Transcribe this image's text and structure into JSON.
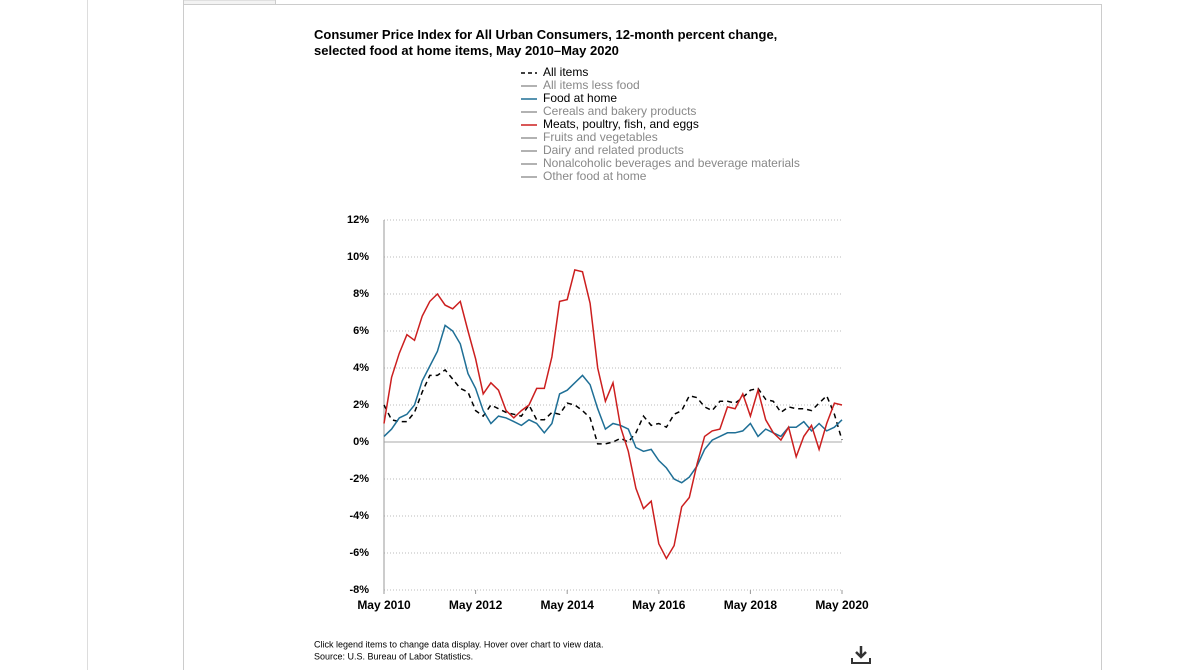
{
  "chart_data": {
    "type": "line",
    "title": "Consumer Price Index for All Urban Consumers, 12-month percent change, selected food at home items, May 2010–May 2020",
    "x": [
      "2010-05",
      "2010-07",
      "2010-09",
      "2010-11",
      "2011-01",
      "2011-03",
      "2011-05",
      "2011-07",
      "2011-09",
      "2011-11",
      "2012-01",
      "2012-03",
      "2012-05",
      "2012-07",
      "2012-09",
      "2012-11",
      "2013-01",
      "2013-03",
      "2013-05",
      "2013-07",
      "2013-09",
      "2013-11",
      "2014-01",
      "2014-03",
      "2014-05",
      "2014-07",
      "2014-09",
      "2014-11",
      "2015-01",
      "2015-03",
      "2015-05",
      "2015-07",
      "2015-09",
      "2015-11",
      "2016-01",
      "2016-03",
      "2016-05",
      "2016-07",
      "2016-09",
      "2016-11",
      "2017-01",
      "2017-03",
      "2017-05",
      "2017-07",
      "2017-09",
      "2017-11",
      "2018-01",
      "2018-03",
      "2018-05",
      "2018-07",
      "2018-09",
      "2018-11",
      "2019-01",
      "2019-03",
      "2019-05",
      "2019-07",
      "2019-09",
      "2019-11",
      "2020-01",
      "2020-03",
      "2020-05"
    ],
    "series": [
      {
        "name": "All items",
        "color": "#000000",
        "dashed": true,
        "visible": true,
        "values": [
          2.0,
          1.2,
          1.1,
          1.1,
          1.6,
          2.7,
          3.6,
          3.6,
          3.9,
          3.4,
          2.9,
          2.7,
          1.7,
          1.4,
          2.0,
          1.8,
          1.6,
          1.5,
          1.4,
          2.0,
          1.2,
          1.2,
          1.6,
          1.5,
          2.1,
          2.0,
          1.7,
          1.3,
          -0.1,
          -0.1,
          0.0,
          0.2,
          0.0,
          0.5,
          1.4,
          0.9,
          1.0,
          0.8,
          1.5,
          1.7,
          2.5,
          2.4,
          1.9,
          1.7,
          2.2,
          2.2,
          2.1,
          2.4,
          2.8,
          2.9,
          2.3,
          2.2,
          1.6,
          1.9,
          1.8,
          1.8,
          1.7,
          2.1,
          2.5,
          1.5,
          0.1
        ]
      },
      {
        "name": "All items less food",
        "color": "#999999",
        "visible": false
      },
      {
        "name": "Food at home",
        "color": "#1f6f96",
        "visible": true,
        "values": [
          0.3,
          0.7,
          1.3,
          1.5,
          2.0,
          3.3,
          4.1,
          4.9,
          6.3,
          6.0,
          5.3,
          3.7,
          2.9,
          1.7,
          1.0,
          1.4,
          1.3,
          1.1,
          0.9,
          1.2,
          1.0,
          0.5,
          1.0,
          2.6,
          2.8,
          3.2,
          3.6,
          3.1,
          1.8,
          0.7,
          1.0,
          0.9,
          0.7,
          -0.3,
          -0.5,
          -0.4,
          -1.0,
          -1.4,
          -2.0,
          -2.2,
          -1.9,
          -1.3,
          -0.4,
          0.1,
          0.3,
          0.5,
          0.5,
          0.6,
          1.0,
          0.3,
          0.7,
          0.5,
          0.3,
          0.8,
          0.8,
          1.1,
          0.6,
          1.0,
          0.6,
          0.8,
          1.2
        ]
      },
      {
        "name": "Cereals and bakery products",
        "color": "#999999",
        "visible": false
      },
      {
        "name": "Meats, poultry, fish, and eggs",
        "color": "#cc1f1f",
        "visible": true,
        "values": [
          1.0,
          3.5,
          4.8,
          5.8,
          5.5,
          6.8,
          7.6,
          8.0,
          7.4,
          7.2,
          7.6,
          6.0,
          4.5,
          2.6,
          3.2,
          2.8,
          1.7,
          1.3,
          1.7,
          2.0,
          2.9,
          2.9,
          4.6,
          7.6,
          7.7,
          9.3,
          9.2,
          7.5,
          4.0,
          2.2,
          3.2,
          0.8,
          -0.5,
          -2.5,
          -3.6,
          -3.2,
          -5.5,
          -6.3,
          -5.6,
          -3.5,
          -3.0,
          -1.2,
          0.3,
          0.6,
          0.7,
          1.9,
          1.8,
          2.6,
          1.4,
          2.8,
          1.2,
          0.5,
          0.1,
          0.8,
          -0.8,
          0.3,
          0.9,
          -0.4,
          1.0,
          2.1,
          2.0
        ]
      },
      {
        "name": "Fruits and vegetables",
        "color": "#999999",
        "visible": false
      },
      {
        "name": "Dairy and related products",
        "color": "#999999",
        "visible": false
      },
      {
        "name": "Nonalcoholic beverages and beverage materials",
        "color": "#999999",
        "visible": false
      },
      {
        "name": "Other food at home",
        "color": "#999999",
        "visible": false
      }
    ],
    "ylim": [
      -8,
      12
    ],
    "yticks": [
      {
        "value": -8,
        "label": "-8%"
      },
      {
        "value": -6,
        "label": "-6%"
      },
      {
        "value": -4,
        "label": "-4%"
      },
      {
        "value": -2,
        "label": "-2%"
      },
      {
        "value": 0,
        "label": "0%"
      },
      {
        "value": 2,
        "label": "2%"
      },
      {
        "value": 4,
        "label": "4%"
      },
      {
        "value": 6,
        "label": "6%"
      },
      {
        "value": 8,
        "label": "8%"
      },
      {
        "value": 10,
        "label": "10%"
      },
      {
        "value": 12,
        "label": "12%"
      }
    ],
    "xticks": [
      {
        "value": "2010-05",
        "label": "May 2010"
      },
      {
        "value": "2012-05",
        "label": "May 2012"
      },
      {
        "value": "2014-05",
        "label": "May 2014"
      },
      {
        "value": "2016-05",
        "label": "May 2016"
      },
      {
        "value": "2018-05",
        "label": "May 2018"
      },
      {
        "value": "2020-05",
        "label": "May 2020"
      }
    ],
    "grid": true
  },
  "notes": [
    "Click legend items to change data display. Hover over chart to view data.",
    "Source: U.S. Bureau of Labor Statistics."
  ]
}
